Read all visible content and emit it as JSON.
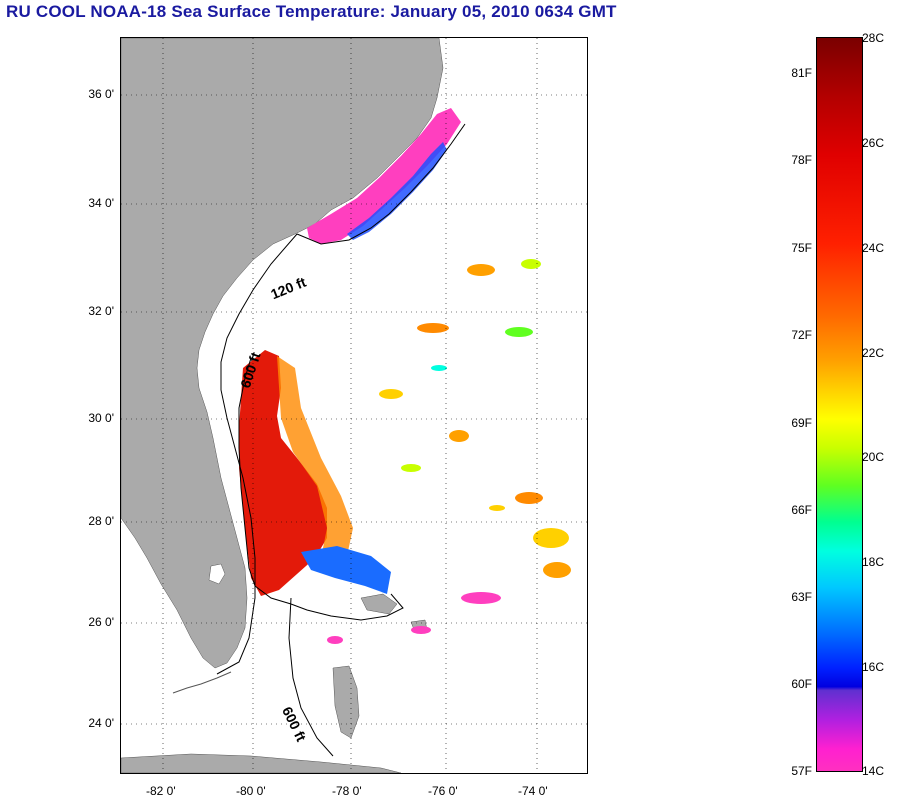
{
  "title": "RU COOL  NOAA-18  Sea Surface Temperature:  January 05, 2010 0634 GMT",
  "map": {
    "latitude_labels": [
      "36 0'",
      "34 0'",
      "32 0'",
      "30 0'",
      "28 0'",
      "26 0'",
      "24 0'"
    ],
    "longitude_labels": [
      "-82 0'",
      "-80 0'",
      "-78 0'",
      "-76 0'",
      "-74 0'"
    ],
    "contour_labels": [
      "120 ft",
      "600 ft",
      "600 ft"
    ],
    "colors": {
      "land": "#aaaaaa",
      "background": "#ffffff",
      "contour": "#000000",
      "grid": "#000000"
    }
  },
  "colorbar": {
    "celsius_labels": [
      "28C",
      "26C",
      "24C",
      "22C",
      "20C",
      "18C",
      "16C",
      "14C"
    ],
    "fahrenheit_labels": [
      "81F",
      "78F",
      "75F",
      "72F",
      "69F",
      "66F",
      "63F",
      "60F",
      "57F"
    ],
    "colors": {
      "top": "#7a0000",
      "red": "#e00000",
      "orange": "#ff6a00",
      "yellow": "#ffff00",
      "green": "#60ff20",
      "cyan": "#00ffe0",
      "blue": "#0020ff",
      "magenta": "#ff30c0"
    }
  }
}
